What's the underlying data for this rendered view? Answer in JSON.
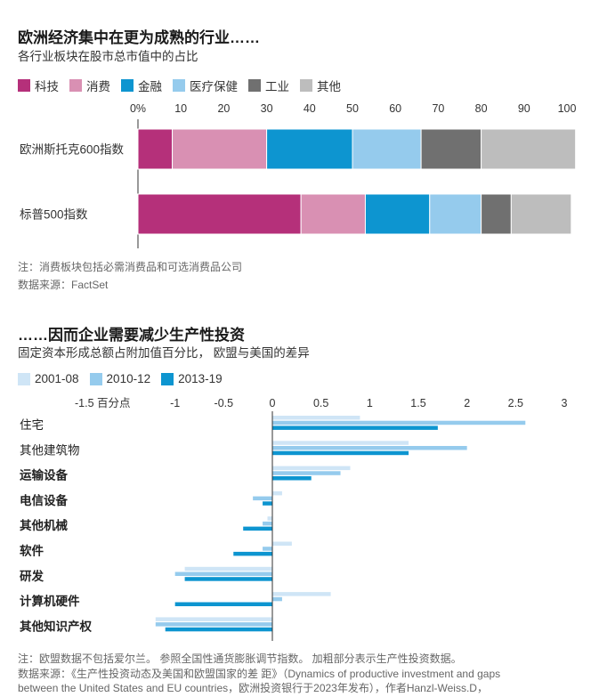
{
  "chart1": {
    "title": "欧洲经济集中在更为成熟的行业……",
    "subtitle": "各行业板块在股市总市值中的占比",
    "note": "注：消费板块包括必需消费品和可选消费品公司",
    "source": "数据来源：FactSet"
  },
  "chart2": {
    "title": "……因而企业需要减少生产性投资",
    "subtitle": "固定资本形成总额占附加值百分比， 欧盟与美国的差异",
    "note": "注：欧盟数据不包括爱尔兰。 参照全国性通货膨胀调节指数。 加粗部分表示生产性投资数据。",
    "source_line1": "数据来源：《生产性投资动态及美国和欧盟国家的差 距》（Dynamics of productive investment and gaps",
    "source_line2": "between the United States and EU countries，欧洲投资银行于2023年发布），作者Hanzl-Weiss.D，"
  },
  "chart_data": [
    {
      "type": "bar",
      "orientation": "horizontal-stacked",
      "title": "欧洲经济集中在更为成熟的行业……",
      "subtitle": "各行业板块在股市总市值中的占比",
      "categories": [
        "欧洲斯托克600指数",
        "标普500指数"
      ],
      "series": [
        {
          "name": "科技",
          "color": "#b5307a",
          "values": [
            8,
            38
          ]
        },
        {
          "name": "消费",
          "color": "#d990b3",
          "values": [
            22,
            15
          ]
        },
        {
          "name": "金融",
          "color": "#0d95d0",
          "values": [
            20,
            15
          ]
        },
        {
          "name": "医疗保健",
          "color": "#95cbed",
          "values": [
            16,
            12
          ]
        },
        {
          "name": "工业",
          "color": "#707070",
          "values": [
            14,
            7
          ]
        },
        {
          "name": "其他",
          "color": "#bdbdbd",
          "values": [
            22,
            14
          ]
        }
      ],
      "xticks": [
        0,
        10,
        20,
        30,
        40,
        50,
        60,
        70,
        80,
        90,
        100
      ],
      "xtick_labels": [
        "0%",
        "10",
        "20",
        "30",
        "40",
        "50",
        "60",
        "70",
        "80",
        "90",
        "100"
      ],
      "xlim": [
        0,
        100
      ]
    },
    {
      "type": "bar",
      "orientation": "horizontal-grouped",
      "title": "……因而企业需要减少生产性投资",
      "subtitle": "固定资本形成总额占附加值百分比， 欧盟与美国的差异",
      "categories": [
        {
          "label": "住宅",
          "bold": false
        },
        {
          "label": "其他建筑物",
          "bold": false
        },
        {
          "label": "运输设备",
          "bold": true
        },
        {
          "label": "电信设备",
          "bold": true
        },
        {
          "label": "其他机械",
          "bold": true
        },
        {
          "label": "软件",
          "bold": true
        },
        {
          "label": "研发",
          "bold": true
        },
        {
          "label": "计算机硬件",
          "bold": true
        },
        {
          "label": "其他知识产权",
          "bold": true
        }
      ],
      "series": [
        {
          "name": "2001-08",
          "color": "#cfe5f6",
          "values": [
            0.9,
            1.4,
            0.8,
            0.1,
            -0.05,
            0.2,
            -0.9,
            0.6,
            -1.2
          ]
        },
        {
          "name": "2010-12",
          "color": "#95cbed",
          "values": [
            2.6,
            2.0,
            0.7,
            -0.2,
            -0.1,
            -0.1,
            -1.0,
            0.1,
            -1.2
          ]
        },
        {
          "name": "2013-19",
          "color": "#0d95d0",
          "values": [
            1.7,
            1.4,
            0.4,
            -0.1,
            -0.3,
            -0.4,
            -0.9,
            -1.0,
            -1.1
          ]
        }
      ],
      "xticks": [
        -1.5,
        -1,
        -0.5,
        0,
        0.5,
        1,
        1.5,
        2,
        2.5,
        3
      ],
      "xtick_labels": [
        "-1.5 百分点",
        "-1",
        "-0.5",
        "0",
        "0.5",
        "1",
        "1.5",
        "2",
        "2.5",
        "3"
      ],
      "xlim": [
        -1.5,
        3
      ]
    }
  ]
}
